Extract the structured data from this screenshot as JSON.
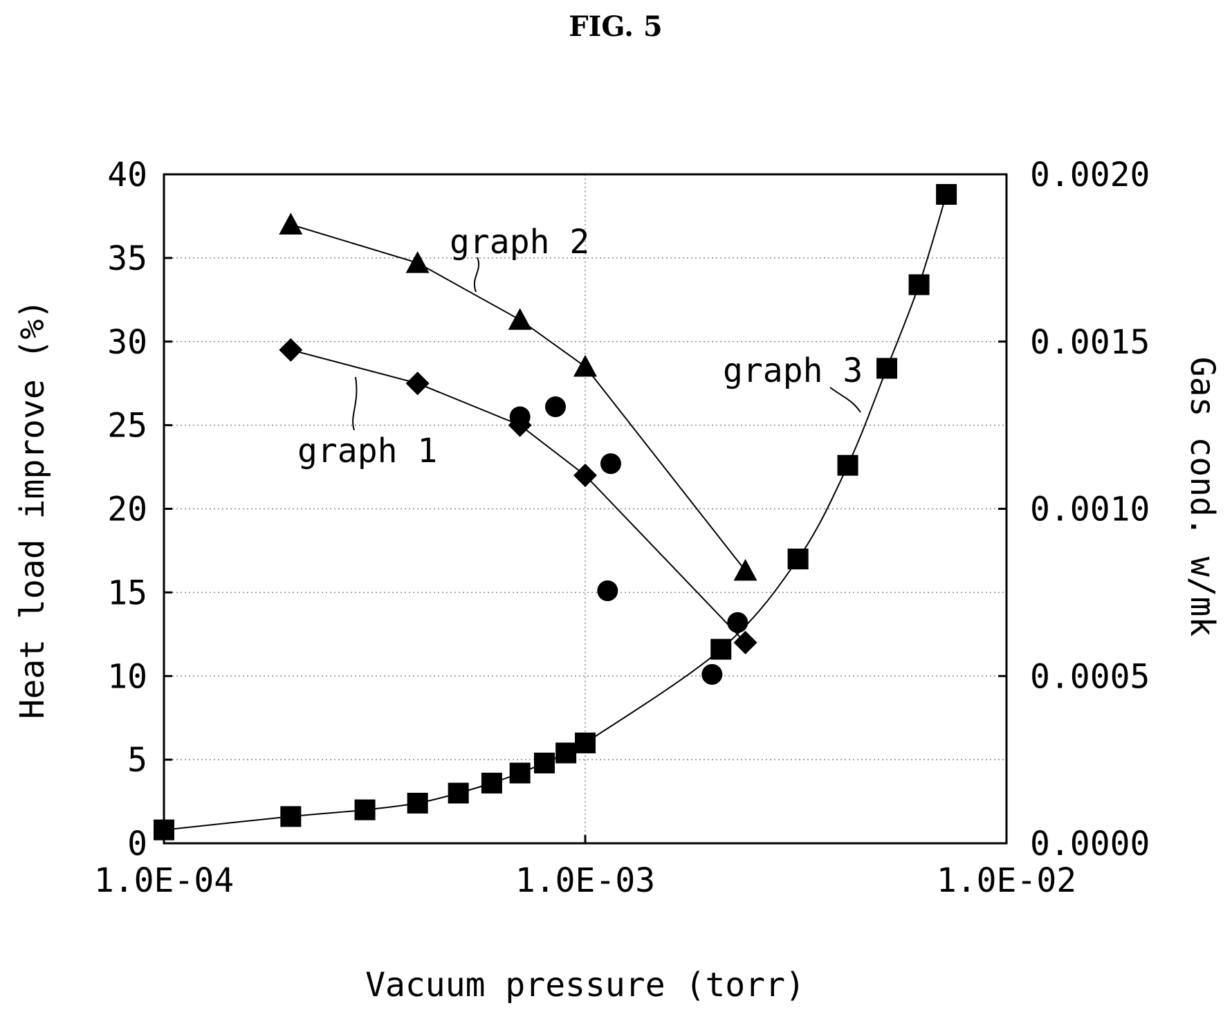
{
  "figure": {
    "title": "FIG. 5"
  },
  "chart_data": {
    "type": "scatter",
    "x_scale": "log",
    "xlim": [
      0.0001,
      0.01
    ],
    "x_ticks": [
      0.0001,
      0.001,
      0.01
    ],
    "x_tick_labels": [
      "1.0E-04",
      "1.0E-03",
      "1.0E-02"
    ],
    "xlabel": "Vacuum pressure (torr)",
    "ylabel_left": "Heat load improve (%)",
    "ylim_left": [
      0,
      40
    ],
    "y_ticks_left": [
      0,
      5,
      10,
      15,
      20,
      25,
      30,
      35,
      40
    ],
    "y_tick_labels_left": [
      "0",
      "5",
      "10",
      "15",
      "20",
      "25",
      "30",
      "35",
      "40"
    ],
    "ylabel_right": "Gas cond. w/mk",
    "ylim_right": [
      0,
      0.002
    ],
    "y_ticks_right": [
      0,
      0.0005,
      0.001,
      0.0015,
      0.002
    ],
    "y_tick_labels_right": [
      "0.0000",
      "0.0005",
      "0.0010",
      "0.0015",
      "0.0020"
    ],
    "grid": "dotted, at each tick",
    "series": [
      {
        "name": "graph 1",
        "axis": "left",
        "marker": "diamond",
        "line": true,
        "x": [
          0.0002,
          0.0004,
          0.0007,
          0.001,
          0.0024
        ],
        "y": [
          29.5,
          27.5,
          25.0,
          22.0,
          12.0
        ]
      },
      {
        "name": "graph 2",
        "axis": "left",
        "marker": "triangle",
        "line": true,
        "x": [
          0.0002,
          0.0004,
          0.0007,
          0.001,
          0.0024
        ],
        "y": [
          37.0,
          34.7,
          31.3,
          28.5,
          16.3
        ]
      },
      {
        "name": "graph 3",
        "axis": "right",
        "marker": "square",
        "line": true,
        "x": [
          0.0001,
          0.0002,
          0.0003,
          0.0004,
          0.0005,
          0.0006,
          0.0007,
          0.0008,
          0.0009,
          0.001,
          0.0021,
          0.0032,
          0.0042,
          0.0052,
          0.0062,
          0.0072
        ],
        "y": [
          4e-05,
          8e-05,
          0.0001,
          0.00012,
          0.00015,
          0.00018,
          0.00021,
          0.00024,
          0.00027,
          0.0003,
          0.00058,
          0.00085,
          0.00113,
          0.00142,
          0.00167,
          0.00194
        ]
      },
      {
        "axis": "left",
        "marker": "circle",
        "line": false,
        "x": [
          0.0007,
          0.00085,
          0.00115,
          0.00113,
          0.002,
          0.0023
        ],
        "y": [
          25.5,
          26.1,
          22.7,
          15.1,
          10.1,
          13.2
        ]
      }
    ],
    "annotations": [
      "graph 1",
      "graph 2",
      "graph 3"
    ]
  }
}
